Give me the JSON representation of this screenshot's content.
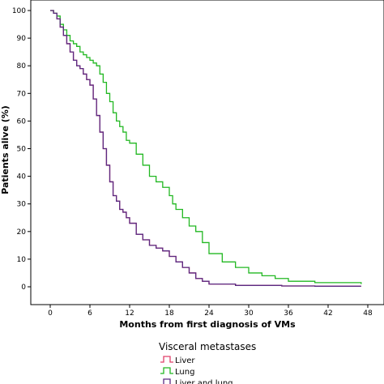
{
  "chart_data": {
    "type": "line",
    "xlabel": "Months from first diagnosis of VMs",
    "ylabel": "Patients alive (%)",
    "xlim": [
      0,
      48
    ],
    "ylim": [
      0,
      100
    ],
    "xticks": [
      0,
      6,
      12,
      18,
      24,
      30,
      36,
      42,
      48
    ],
    "yticks": [
      0,
      10,
      20,
      30,
      40,
      50,
      60,
      70,
      80,
      90,
      100
    ],
    "legend": {
      "title": "Visceral metastases",
      "placement": "bottom"
    },
    "series": [
      {
        "name": "Liver",
        "color": "#e0406a",
        "x": [
          0,
          0.5,
          1,
          1.5,
          2,
          2.5,
          3,
          3.5,
          4,
          4.5,
          5,
          5.5,
          6,
          6.5,
          7,
          7.5,
          8,
          8.5,
          9,
          9.5,
          10,
          10.5,
          11,
          11.5,
          12,
          13,
          14,
          15,
          16,
          17,
          18,
          19,
          20,
          21,
          22,
          23,
          24,
          26,
          28,
          30,
          35,
          40,
          47
        ],
        "y": [
          100,
          99,
          97,
          94,
          91,
          88,
          85,
          82,
          80,
          79,
          77,
          75,
          73,
          68,
          62,
          56,
          50,
          44,
          38,
          33,
          31,
          28,
          27,
          25,
          23,
          19,
          17,
          15,
          14,
          13,
          11,
          9,
          7,
          5,
          3,
          2,
          1,
          1,
          0.5,
          0.5,
          0.3,
          0.2,
          0.2
        ]
      },
      {
        "name": "Lung",
        "color": "#22b822",
        "x": [
          0,
          0.5,
          1,
          1.5,
          2,
          2.5,
          3,
          3.5,
          4,
          4.5,
          5,
          5.5,
          6,
          6.5,
          7,
          7.5,
          8,
          8.5,
          9,
          9.5,
          10,
          10.5,
          11,
          11.5,
          12,
          13,
          14,
          15,
          16,
          17,
          18,
          18.5,
          19,
          20,
          21,
          22,
          23,
          24,
          26,
          28,
          30,
          32,
          34,
          36,
          40,
          44,
          47
        ],
        "y": [
          100,
          99,
          98,
          95,
          93,
          91,
          89,
          88,
          87,
          85,
          84,
          83,
          82,
          81,
          80,
          77,
          74,
          70,
          67,
          63,
          60,
          58,
          56,
          53,
          52,
          48,
          44,
          40,
          38,
          36,
          33,
          30,
          28,
          25,
          22,
          20,
          16,
          12,
          9,
          7,
          5,
          4,
          3,
          2,
          1.5,
          1.5,
          1
        ]
      },
      {
        "name": "Liver and lung",
        "color": "#5a2a82",
        "x": [
          0,
          0.5,
          1,
          1.5,
          2,
          2.5,
          3,
          3.5,
          4,
          4.5,
          5,
          5.5,
          6,
          6.5,
          7,
          7.5,
          8,
          8.5,
          9,
          9.5,
          10,
          10.5,
          11,
          11.5,
          12,
          13,
          14,
          15,
          16,
          17,
          18,
          19,
          20,
          21,
          22,
          23,
          24,
          26,
          28,
          30,
          35,
          40,
          47
        ],
        "y": [
          100,
          99,
          97,
          94,
          91,
          88,
          85,
          82,
          80,
          79,
          77,
          75,
          73,
          68,
          62,
          56,
          50,
          44,
          38,
          33,
          31,
          28,
          27,
          25,
          23,
          19,
          17,
          15,
          14,
          13,
          11,
          9,
          7,
          5,
          3,
          2,
          1,
          1,
          0.5,
          0.5,
          0.3,
          0.2,
          0.2
        ]
      }
    ]
  }
}
